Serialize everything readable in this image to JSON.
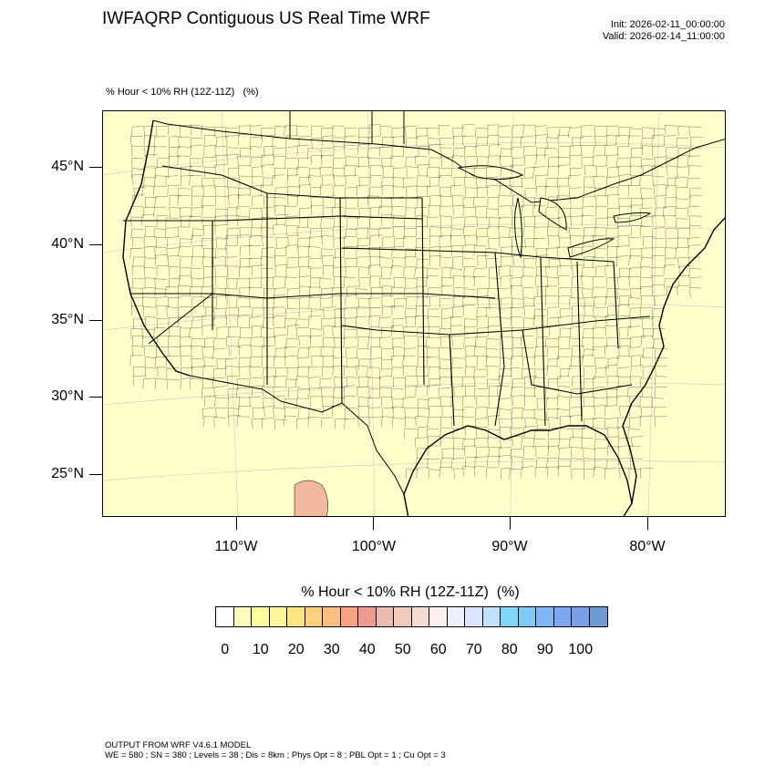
{
  "title": "IWFAQRP Contiguous US Real Time WRF",
  "init": "Init: 2026-02-11_00:00:00",
  "valid": "Valid: 2026-02-14_11:00:00",
  "field_label": "% Hour < 10% RH (12Z-11Z)   (%)",
  "map": {
    "region": "Contiguous United States",
    "lat_labels": [
      "45°N",
      "40°N",
      "35°N",
      "30°N",
      "25°N"
    ],
    "lon_labels": [
      "110°W",
      "100°W",
      "90°W",
      "80°W"
    ],
    "colors": {
      "land": "#ffffcc",
      "water": "#ffffcc",
      "boundaries": "#000000",
      "grid": "#c0c0c0",
      "highlight": "#f2b8a0"
    }
  },
  "colorbar": {
    "title": "% Hour < 10% RH (12Z-11Z)  (%)",
    "labels": [
      "0",
      "10",
      "20",
      "30",
      "40",
      "50",
      "60",
      "70",
      "80",
      "90",
      "100"
    ],
    "colors": [
      "#ffffff",
      "#ffffbf",
      "#ffff9f",
      "#fff59a",
      "#ffe680",
      "#ffcf80",
      "#ffbf80",
      "#f7a386",
      "#ee9a90",
      "#ebbab0",
      "#f2c9bd",
      "#f5dcd2",
      "#fdeef0",
      "#eef0ff",
      "#dde4ff",
      "#c4e0ff",
      "#80d8f8",
      "#7fcaf8",
      "#7fb6f8",
      "#7fa6f4",
      "#7a9ee8",
      "#6f9ad3"
    ]
  },
  "footer": {
    "line1": "OUTPUT FROM WRF V4.6.1 MODEL",
    "line2": "WE = 580 ; SN = 380 ; Levels = 38 ; Dis = 8km ; Phys Opt = 8 ; PBL Opt = 1 ; Cu Opt = 3"
  }
}
